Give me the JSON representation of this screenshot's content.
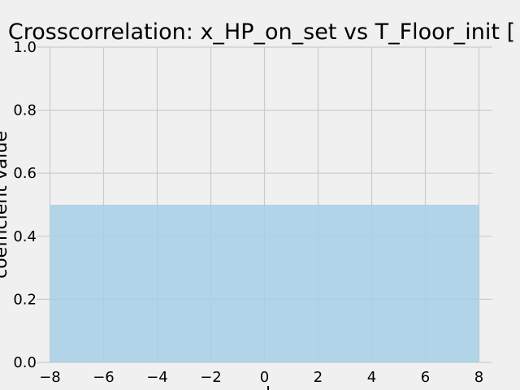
{
  "chart_data": {
    "type": "area",
    "title": "Crosscorrelation: x_HP_on_set vs T_Floor_init [",
    "xlabel": "l",
    "ylabel": "coefficient value",
    "xlim": [
      -8.5,
      8.5
    ],
    "ylim": [
      0.0,
      1.0
    ],
    "x_ticks": [
      -8,
      -6,
      -4,
      -2,
      0,
      2,
      4,
      6,
      8
    ],
    "x_tick_labels": [
      "−8",
      "−6",
      "−4",
      "−2",
      "0",
      "2",
      "4",
      "6",
      "8"
    ],
    "y_ticks": [
      0.0,
      0.2,
      0.4,
      0.6,
      0.8,
      1.0
    ],
    "y_tick_labels": [
      "0.0",
      "0.2",
      "0.4",
      "0.6",
      "0.8",
      "1.0"
    ],
    "grid": true,
    "series": [
      {
        "x": [
          -8,
          -7,
          -6,
          -5,
          -4,
          -3,
          -2,
          -1,
          0,
          1,
          2,
          3,
          4,
          5,
          6,
          7,
          8
        ],
        "values": [
          0.5,
          0.5,
          0.5,
          0.5,
          0.5,
          0.5,
          0.5,
          0.5,
          0.5,
          0.5,
          0.5,
          0.5,
          0.5,
          0.5,
          0.5,
          0.5,
          0.5
        ],
        "color": "#a6cfe6"
      }
    ],
    "background_color": "#f0f0f0",
    "grid_color": "#cbcbcb"
  }
}
